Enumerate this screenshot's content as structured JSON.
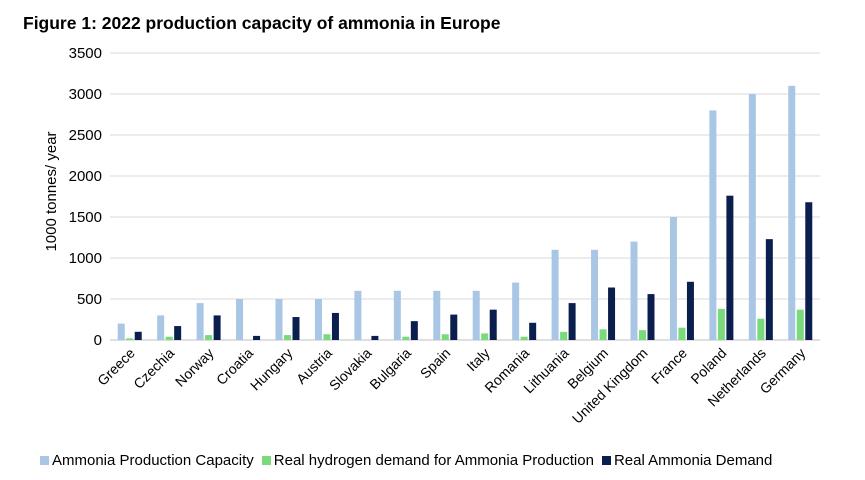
{
  "chart_data": {
    "type": "bar",
    "title": "Figure 1: 2022 production capacity of ammonia in Europe",
    "ylabel": "1000 tonnes/ year",
    "xlabel": "",
    "ylim": [
      0,
      3500
    ],
    "yticks": [
      0,
      500,
      1000,
      1500,
      2000,
      2500,
      3000,
      3500
    ],
    "grid": true,
    "legend_position": "bottom",
    "categories": [
      "Greece",
      "Czechia",
      "Norway",
      "Croatia",
      "Hungary",
      "Austria",
      "Slovakia",
      "Bulgaria",
      "Spain",
      "Italy",
      "Romania",
      "Lithuania",
      "Belgium",
      "United Kingdom",
      "France",
      "Poland",
      "Netherlands",
      "Germany"
    ],
    "series": [
      {
        "name": "Ammonia Production Capacity",
        "color": "#a9c6e5",
        "values": [
          200,
          300,
          450,
          500,
          500,
          500,
          600,
          600,
          600,
          600,
          700,
          1100,
          1100,
          1200,
          1500,
          2800,
          3000,
          3100
        ]
      },
      {
        "name": "Real hydrogen demand for Ammonia Production",
        "color": "#7ad97a",
        "values": [
          20,
          40,
          60,
          0,
          60,
          70,
          0,
          40,
          70,
          80,
          40,
          100,
          130,
          120,
          150,
          380,
          260,
          370
        ]
      },
      {
        "name": "Real Ammonia Demand",
        "color": "#0b1f4f",
        "values": [
          100,
          170,
          300,
          50,
          280,
          330,
          50,
          230,
          310,
          370,
          210,
          450,
          640,
          560,
          710,
          1760,
          1230,
          1680
        ]
      }
    ]
  }
}
